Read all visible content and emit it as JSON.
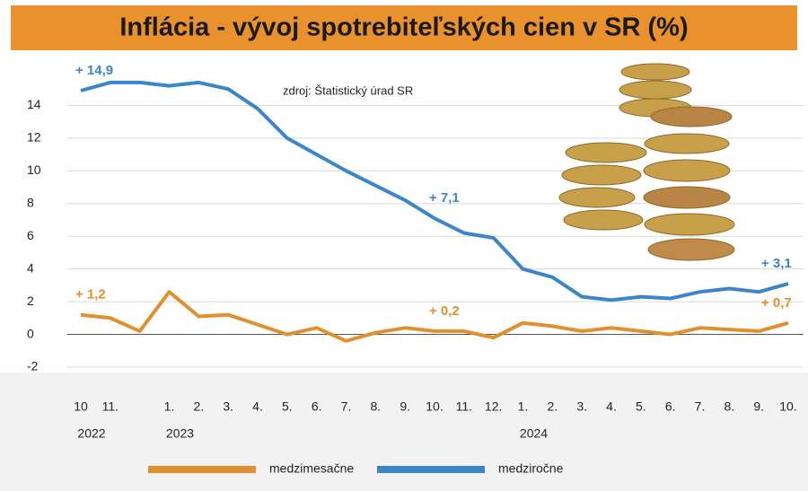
{
  "chart_data": {
    "type": "line",
    "title": "Inflácia - vývoj spotrebiteľských cien v SR (%)",
    "annotation": "zdroj: Štatistický úrad SR",
    "categories": [
      "10",
      "11.",
      null,
      "1.",
      "2.",
      "3.",
      "4.",
      "5.",
      "6.",
      "7.",
      "8.",
      "9.",
      "10.",
      "11.",
      "12.",
      "1.",
      "2.",
      "3.",
      "4.",
      "5.",
      "6.",
      "7.",
      "8.",
      "9.",
      "10."
    ],
    "years": [
      "2022",
      null,
      null,
      "2023",
      null,
      null,
      null,
      null,
      null,
      null,
      null,
      null,
      null,
      null,
      null,
      "2024",
      null,
      null,
      null,
      null,
      null,
      null,
      null,
      null,
      null
    ],
    "series": [
      {
        "name": "medzimesačne",
        "color": "#e0902f",
        "values": [
          1.2,
          1.0,
          0.2,
          2.6,
          1.1,
          1.2,
          0.6,
          0.0,
          0.4,
          -0.4,
          0.1,
          0.4,
          0.2,
          0.2,
          -0.2,
          0.7,
          0.5,
          0.2,
          0.4,
          0.2,
          0.0,
          0.4,
          0.3,
          0.2,
          0.7
        ],
        "value_labels": [
          "+ 1,2",
          null,
          null,
          null,
          null,
          null,
          null,
          null,
          null,
          null,
          null,
          null,
          "+ 0,2",
          null,
          null,
          null,
          null,
          null,
          null,
          null,
          null,
          null,
          null,
          null,
          "+ 0,7"
        ]
      },
      {
        "name": "medziročne",
        "color": "#3a86c8",
        "values": [
          14.9,
          15.4,
          15.4,
          15.2,
          15.4,
          15.0,
          13.8,
          12.0,
          11.0,
          10.0,
          9.1,
          8.2,
          7.1,
          6.2,
          5.9,
          4.0,
          3.5,
          2.3,
          2.1,
          2.3,
          2.2,
          2.6,
          2.8,
          2.6,
          3.1
        ],
        "value_labels": [
          "+ 14,9",
          null,
          null,
          null,
          null,
          null,
          null,
          null,
          null,
          null,
          null,
          null,
          "+ 7,1",
          null,
          null,
          null,
          null,
          null,
          null,
          null,
          null,
          null,
          null,
          null,
          "+ 3,1"
        ]
      }
    ],
    "ylim": [
      -2,
      16
    ],
    "yticks": [
      -2,
      0,
      2,
      4,
      6,
      8,
      10,
      12,
      14
    ],
    "grid": true
  }
}
